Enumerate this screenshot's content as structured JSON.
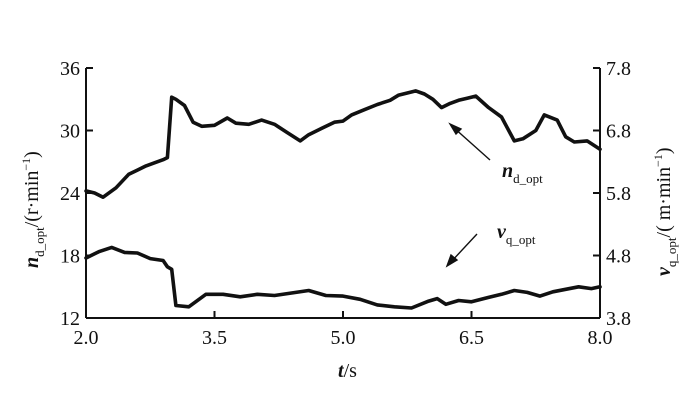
{
  "chart_data": {
    "type": "line",
    "x_axis": {
      "label_var": "t",
      "label_unit": "/s",
      "range": [
        2.0,
        8.0
      ],
      "ticks": [
        "2.0",
        "3.5",
        "5.0",
        "6.5",
        "8.0"
      ]
    },
    "y_left": {
      "label_var": "n",
      "label_sub": "d_opt",
      "label_unit_pre": "/(r·min",
      "label_unit_sup": "−1",
      "label_unit_post": ")",
      "range": [
        12,
        36
      ],
      "ticks": [
        "12",
        "18",
        "24",
        "30",
        "36"
      ]
    },
    "y_right": {
      "label_var": "v",
      "label_sub": "q_opt",
      "label_unit_pre": "/( m·min",
      "label_unit_sup": "−1",
      "label_unit_post": ")",
      "range": [
        3.8,
        7.8
      ],
      "ticks": [
        "3.8",
        "4.8",
        "5.8",
        "6.8",
        "7.8"
      ]
    },
    "series": [
      {
        "name": "n_d_opt",
        "label_var": "n",
        "label_sub": "d_opt",
        "axis": "left",
        "x": [
          2.0,
          2.1,
          2.2,
          2.35,
          2.5,
          2.6,
          2.7,
          2.8,
          2.9,
          2.95,
          3.0,
          3.05,
          3.15,
          3.25,
          3.35,
          3.5,
          3.65,
          3.75,
          3.9,
          4.05,
          4.2,
          4.35,
          4.5,
          4.6,
          4.75,
          4.9,
          5.0,
          5.1,
          5.25,
          5.4,
          5.55,
          5.65,
          5.75,
          5.85,
          5.95,
          6.05,
          6.15,
          6.25,
          6.35,
          6.45,
          6.55,
          6.7,
          6.85,
          7.0,
          7.1,
          7.25,
          7.35,
          7.5,
          7.6,
          7.7,
          7.85,
          8.0
        ],
        "y": [
          24.2,
          24.0,
          23.6,
          24.5,
          25.8,
          26.2,
          26.6,
          26.9,
          27.2,
          27.4,
          33.2,
          33.0,
          32.4,
          30.8,
          30.4,
          30.5,
          31.2,
          30.7,
          30.6,
          31.0,
          30.6,
          29.8,
          29.0,
          29.6,
          30.2,
          30.8,
          30.9,
          31.5,
          32.0,
          32.5,
          32.9,
          33.4,
          33.6,
          33.8,
          33.5,
          33.0,
          32.2,
          32.6,
          32.9,
          33.1,
          33.3,
          32.2,
          31.3,
          29.0,
          29.2,
          30.0,
          31.5,
          31.0,
          29.4,
          28.9,
          29.0,
          28.2
        ]
      },
      {
        "name": "v_q_opt",
        "label_var": "v",
        "label_sub": "q_opt",
        "axis": "right",
        "x": [
          2.0,
          2.15,
          2.3,
          2.45,
          2.6,
          2.75,
          2.9,
          2.95,
          3.0,
          3.05,
          3.2,
          3.4,
          3.6,
          3.8,
          4.0,
          4.2,
          4.4,
          4.6,
          4.8,
          5.0,
          5.2,
          5.4,
          5.6,
          5.8,
          6.0,
          6.1,
          6.2,
          6.35,
          6.5,
          6.7,
          6.85,
          7.0,
          7.15,
          7.3,
          7.45,
          7.6,
          7.75,
          7.9,
          8.0
        ],
        "y": [
          4.76,
          4.86,
          4.93,
          4.85,
          4.84,
          4.75,
          4.72,
          4.62,
          4.58,
          4.0,
          3.98,
          4.18,
          4.18,
          4.14,
          4.18,
          4.16,
          4.2,
          4.24,
          4.16,
          4.15,
          4.1,
          4.01,
          3.98,
          3.96,
          4.07,
          4.11,
          4.02,
          4.08,
          4.06,
          4.13,
          4.18,
          4.24,
          4.21,
          4.15,
          4.22,
          4.26,
          4.3,
          4.27,
          4.3
        ]
      }
    ],
    "annotations": [
      {
        "series": "n_d_opt",
        "label_var": "n",
        "label_sub": "d_opt"
      },
      {
        "series": "v_q_opt",
        "label_var": "v",
        "label_sub": "q_opt"
      }
    ],
    "grid": false,
    "legend": "none"
  }
}
